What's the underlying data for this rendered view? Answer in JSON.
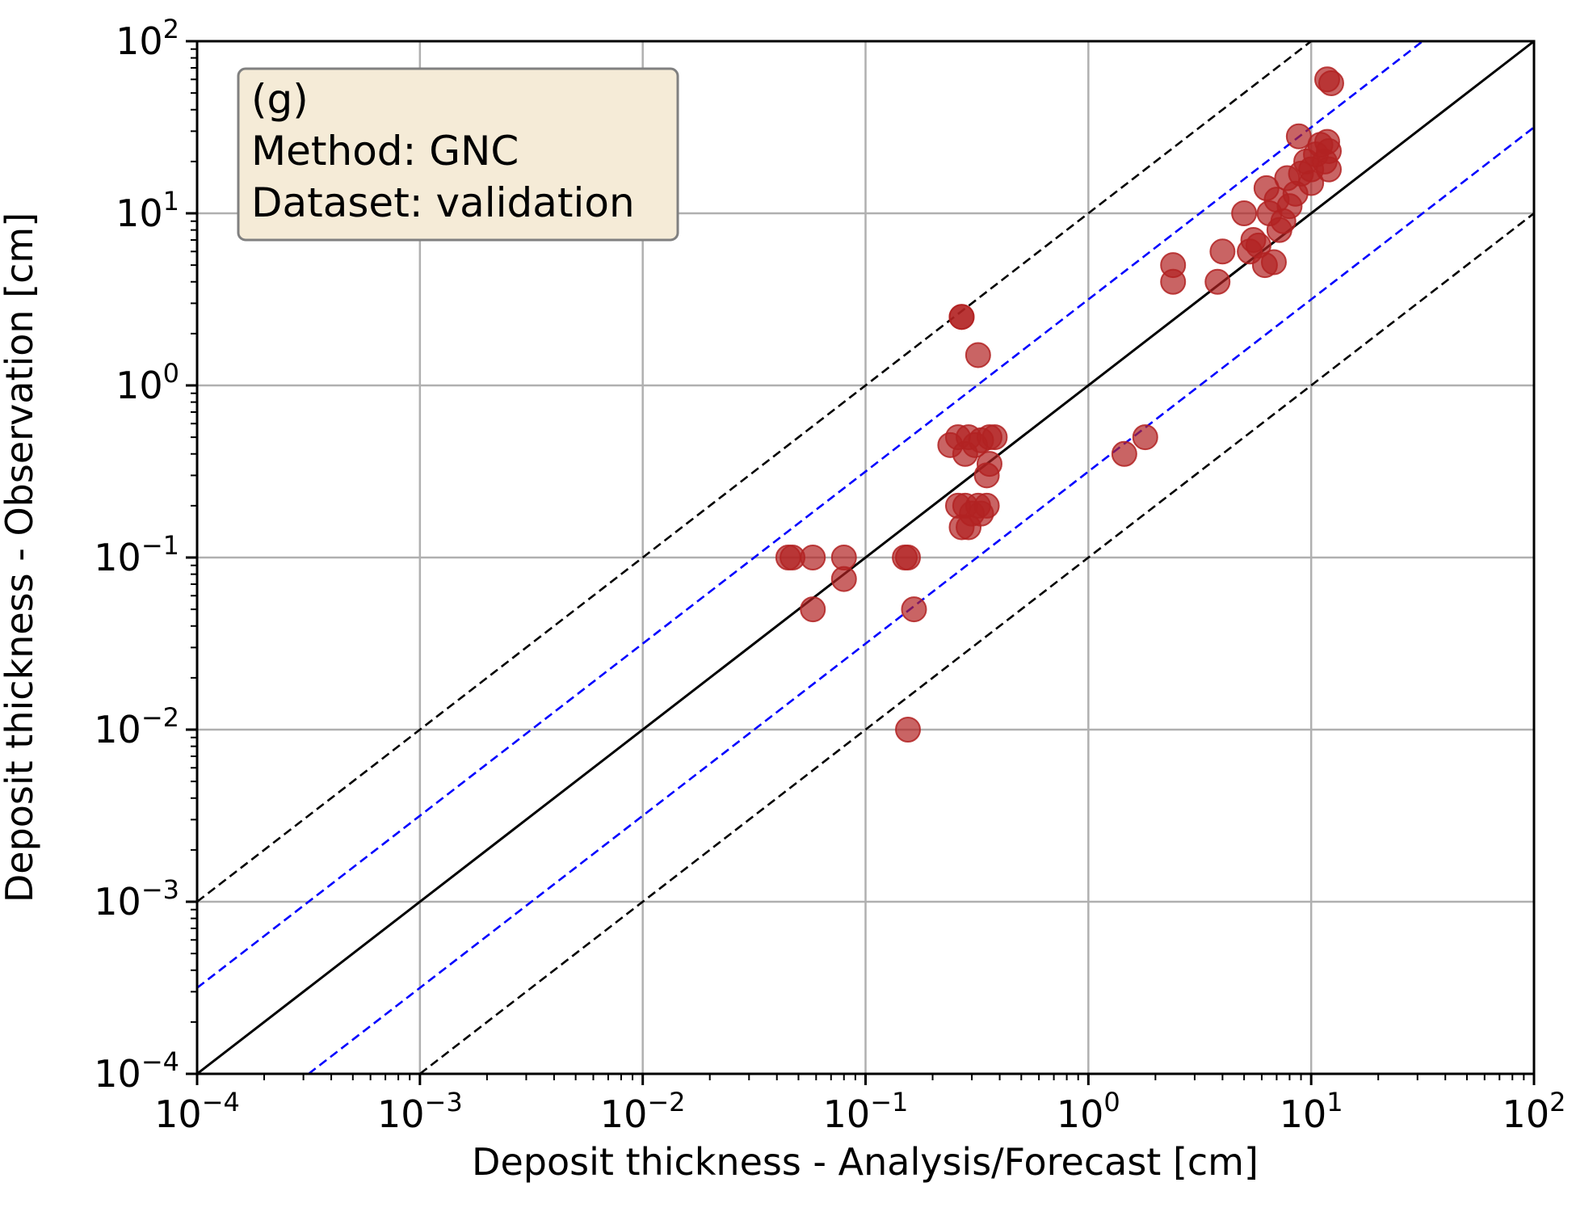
{
  "chart_data": {
    "type": "scatter",
    "xlabel": "Deposit thickness - Analysis/Forecast [cm]",
    "ylabel": "Deposit thickness - Observation [cm]",
    "xscale": "log",
    "yscale": "log",
    "xlim": [
      0.0001,
      100
    ],
    "ylim": [
      0.0001,
      100
    ],
    "x_ticks": [
      {
        "base": "10",
        "exp": "−4",
        "value": 0.0001
      },
      {
        "base": "10",
        "exp": "−3",
        "value": 0.001
      },
      {
        "base": "10",
        "exp": "−2",
        "value": 0.01
      },
      {
        "base": "10",
        "exp": "−1",
        "value": 0.1
      },
      {
        "base": "10",
        "exp": "0",
        "value": 1
      },
      {
        "base": "10",
        "exp": "1",
        "value": 10
      },
      {
        "base": "10",
        "exp": "2",
        "value": 100
      }
    ],
    "y_ticks": [
      {
        "base": "10",
        "exp": "−4",
        "value": 0.0001
      },
      {
        "base": "10",
        "exp": "−3",
        "value": 0.001
      },
      {
        "base": "10",
        "exp": "−2",
        "value": 0.01
      },
      {
        "base": "10",
        "exp": "−1",
        "value": 0.1
      },
      {
        "base": "10",
        "exp": "0",
        "value": 1
      },
      {
        "base": "10",
        "exp": "1",
        "value": 10
      },
      {
        "base": "10",
        "exp": "2",
        "value": 100
      }
    ],
    "grid": true,
    "annotation": {
      "position": "top-left",
      "lines": [
        "(g)",
        "Method: GNC",
        "Dataset: validation"
      ]
    },
    "reference_lines": [
      {
        "kind": "1:1",
        "factor": 1,
        "color": "#000000",
        "style": "solid"
      },
      {
        "kind": "factor",
        "factor": 3.16,
        "color": "#0000ff",
        "style": "dashed"
      },
      {
        "kind": "factor",
        "factor": 0.316,
        "color": "#0000ff",
        "style": "dashed"
      },
      {
        "kind": "factor",
        "factor": 10,
        "color": "#000000",
        "style": "dashed"
      },
      {
        "kind": "factor",
        "factor": 0.1,
        "color": "#000000",
        "style": "dashed"
      }
    ],
    "marker_color": "#b22222",
    "series": [
      {
        "points": [
          {
            "x": 0.045,
            "y": 0.1
          },
          {
            "x": 0.047,
            "y": 0.1
          },
          {
            "x": 0.058,
            "y": 0.1
          },
          {
            "x": 0.058,
            "y": 0.05
          },
          {
            "x": 0.08,
            "y": 0.1
          },
          {
            "x": 0.08,
            "y": 0.075
          },
          {
            "x": 0.15,
            "y": 0.1
          },
          {
            "x": 0.155,
            "y": 0.1
          },
          {
            "x": 0.165,
            "y": 0.05
          },
          {
            "x": 0.155,
            "y": 0.01
          },
          {
            "x": 0.27,
            "y": 2.5
          },
          {
            "x": 0.27,
            "y": 2.5
          },
          {
            "x": 0.32,
            "y": 1.5
          },
          {
            "x": 0.24,
            "y": 0.45
          },
          {
            "x": 0.26,
            "y": 0.5
          },
          {
            "x": 0.28,
            "y": 0.4
          },
          {
            "x": 0.29,
            "y": 0.5
          },
          {
            "x": 0.31,
            "y": 0.45
          },
          {
            "x": 0.33,
            "y": 0.48
          },
          {
            "x": 0.36,
            "y": 0.5
          },
          {
            "x": 0.38,
            "y": 0.5
          },
          {
            "x": 0.35,
            "y": 0.3
          },
          {
            "x": 0.36,
            "y": 0.35
          },
          {
            "x": 0.26,
            "y": 0.2
          },
          {
            "x": 0.28,
            "y": 0.2
          },
          {
            "x": 0.3,
            "y": 0.18
          },
          {
            "x": 0.32,
            "y": 0.2
          },
          {
            "x": 0.35,
            "y": 0.2
          },
          {
            "x": 0.27,
            "y": 0.15
          },
          {
            "x": 0.29,
            "y": 0.15
          },
          {
            "x": 0.33,
            "y": 0.18
          },
          {
            "x": 1.45,
            "y": 0.4
          },
          {
            "x": 1.8,
            "y": 0.5
          },
          {
            "x": 2.4,
            "y": 5
          },
          {
            "x": 2.4,
            "y": 4
          },
          {
            "x": 3.8,
            "y": 4
          },
          {
            "x": 4.0,
            "y": 6
          },
          {
            "x": 5.0,
            "y": 10
          },
          {
            "x": 5.3,
            "y": 6
          },
          {
            "x": 5.5,
            "y": 7
          },
          {
            "x": 5.8,
            "y": 6.5
          },
          {
            "x": 6.2,
            "y": 5
          },
          {
            "x": 6.8,
            "y": 5.2
          },
          {
            "x": 6.5,
            "y": 10
          },
          {
            "x": 6.3,
            "y": 14
          },
          {
            "x": 7.0,
            "y": 12
          },
          {
            "x": 7.2,
            "y": 8
          },
          {
            "x": 7.5,
            "y": 9
          },
          {
            "x": 7.8,
            "y": 16
          },
          {
            "x": 8.0,
            "y": 11
          },
          {
            "x": 8.5,
            "y": 13
          },
          {
            "x": 8.8,
            "y": 28
          },
          {
            "x": 9.0,
            "y": 17
          },
          {
            "x": 9.5,
            "y": 20
          },
          {
            "x": 10.0,
            "y": 15
          },
          {
            "x": 10.0,
            "y": 18
          },
          {
            "x": 10.5,
            "y": 22
          },
          {
            "x": 11.0,
            "y": 25
          },
          {
            "x": 11.5,
            "y": 20
          },
          {
            "x": 12.0,
            "y": 18
          },
          {
            "x": 11.8,
            "y": 26
          },
          {
            "x": 12.0,
            "y": 23
          },
          {
            "x": 11.8,
            "y": 60
          },
          {
            "x": 12.3,
            "y": 57
          }
        ]
      }
    ]
  }
}
